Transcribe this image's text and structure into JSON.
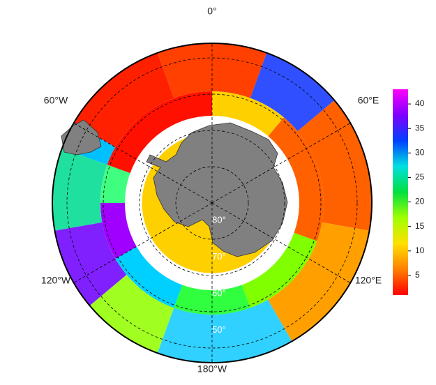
{
  "map": {
    "longitude_labels": [
      "0°",
      "60°E",
      "120°E",
      "180°W",
      "120°W",
      "60°W"
    ],
    "latitude_labels": [
      "80°",
      "70°",
      "60°",
      "50°"
    ],
    "colorbar": {
      "lim": [
        1,
        43
      ],
      "ticks": [
        5,
        10,
        15,
        20,
        25,
        30,
        35,
        40
      ],
      "colors": [
        "#ff0000",
        "#ff8000",
        "#ffe000",
        "#a0ff00",
        "#00e040",
        "#00e0e0",
        "#0040ff",
        "#8000ff",
        "#ff00ff"
      ]
    }
  }
}
